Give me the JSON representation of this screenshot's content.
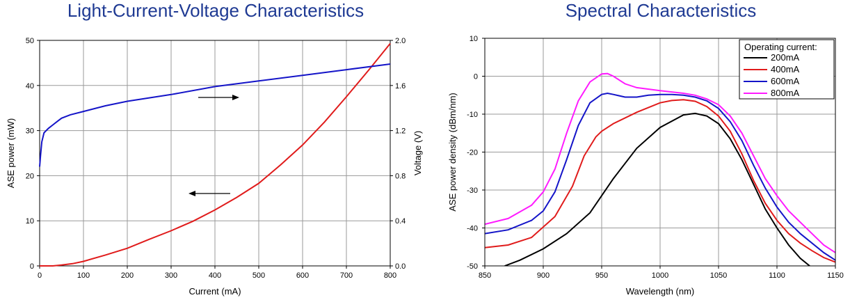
{
  "colors": {
    "title": "#1f3a93",
    "grid": "#9a9a9a",
    "blue": "#1414c8",
    "red": "#e01b1b",
    "black": "#000000",
    "magenta": "#ff1aff"
  },
  "chart_data": [
    {
      "type": "line",
      "title": "Light-Current-Voltage Characteristics",
      "xlabel": "Current (mA)",
      "ylabel": "ASE power (mW)",
      "y2label": "Voltage (V)",
      "xlim": [
        0,
        800
      ],
      "ylim": [
        0,
        50
      ],
      "y2lim": [
        0,
        2.0
      ],
      "xticks": [
        "0",
        "100",
        "200",
        "300",
        "400",
        "500",
        "600",
        "700",
        "800"
      ],
      "yticks": [
        "0",
        "10",
        "20",
        "30",
        "40",
        "50"
      ],
      "y2ticks": [
        "0.0",
        "0.4",
        "0.8",
        "1.2",
        "1.6",
        "2.0"
      ],
      "grid": true,
      "annotations": [
        {
          "type": "arrow",
          "direction": "right",
          "points_to": "Voltage (V)"
        },
        {
          "type": "arrow",
          "direction": "left",
          "points_to": "ASE power (mW)"
        }
      ],
      "series": [
        {
          "axis": "y",
          "color": "red",
          "x": [
            0,
            30,
            50,
            75,
            100,
            150,
            200,
            250,
            300,
            350,
            400,
            450,
            500,
            550,
            600,
            650,
            700,
            750,
            800
          ],
          "y": [
            0,
            0,
            0.2,
            0.5,
            1.0,
            2.4,
            3.9,
            5.9,
            7.8,
            9.9,
            12.4,
            15.2,
            18.3,
            22.4,
            26.8,
            31.9,
            37.5,
            43.3,
            49.3
          ]
        },
        {
          "axis": "y2",
          "color": "blue",
          "x": [
            0,
            2,
            5,
            10,
            20,
            30,
            40,
            50,
            70,
            100,
            150,
            200,
            300,
            400,
            500,
            600,
            700,
            800
          ],
          "y": [
            0.88,
            0.98,
            1.1,
            1.18,
            1.22,
            1.25,
            1.28,
            1.31,
            1.34,
            1.37,
            1.42,
            1.46,
            1.52,
            1.59,
            1.64,
            1.69,
            1.74,
            1.79
          ]
        }
      ]
    },
    {
      "type": "line",
      "title": "Spectral Characteristics",
      "xlabel": "Wavelength (nm)",
      "ylabel": "ASE power density (dBm/nm)",
      "xlim": [
        850,
        1150
      ],
      "ylim": [
        -50,
        10
      ],
      "xticks": [
        "850",
        "900",
        "950",
        "1000",
        "1050",
        "1100",
        "1150"
      ],
      "yticks": [
        "-50",
        "-40",
        "-30",
        "-20",
        "-10",
        "0",
        "10"
      ],
      "grid": true,
      "legend": {
        "title": "Operating current:",
        "position": "top-right"
      },
      "series": [
        {
          "name": "200mA",
          "color": "black",
          "x": [
            867,
            880,
            900,
            920,
            940,
            960,
            980,
            1000,
            1020,
            1030,
            1040,
            1050,
            1060,
            1070,
            1080,
            1090,
            1100,
            1110,
            1120,
            1128
          ],
          "y": [
            -50,
            -48.5,
            -45.5,
            -41.5,
            -36,
            -27,
            -19,
            -13.5,
            -10.2,
            -9.8,
            -10.5,
            -12.5,
            -16.5,
            -22,
            -28.5,
            -35,
            -40,
            -44.5,
            -48,
            -50
          ]
        },
        {
          "name": "400mA",
          "color": "red",
          "x": [
            850,
            870,
            890,
            910,
            925,
            935,
            945,
            950,
            960,
            980,
            1000,
            1010,
            1020,
            1030,
            1040,
            1050,
            1060,
            1070,
            1080,
            1090,
            1100,
            1110,
            1120,
            1130,
            1140,
            1150
          ],
          "y": [
            -45.2,
            -44.5,
            -42.5,
            -37,
            -29,
            -21,
            -16,
            -14.5,
            -12.5,
            -9.5,
            -7,
            -6.4,
            -6.2,
            -6.6,
            -8,
            -10.5,
            -14.5,
            -20.5,
            -27.5,
            -33.5,
            -38,
            -41.5,
            -44,
            -46,
            -47.8,
            -49
          ]
        },
        {
          "name": "600mA",
          "color": "blue",
          "x": [
            850,
            870,
            890,
            900,
            910,
            920,
            930,
            940,
            950,
            955,
            960,
            970,
            980,
            990,
            1000,
            1010,
            1020,
            1030,
            1040,
            1050,
            1060,
            1070,
            1080,
            1090,
            1100,
            1110,
            1120,
            1130,
            1140,
            1150
          ],
          "y": [
            -41.5,
            -40.5,
            -38,
            -35.5,
            -30.5,
            -22,
            -13,
            -7,
            -4.8,
            -4.5,
            -4.8,
            -5.5,
            -5.5,
            -5,
            -4.8,
            -4.8,
            -5,
            -5.5,
            -6.5,
            -8.5,
            -12,
            -17,
            -23.5,
            -29.5,
            -34.5,
            -38.5,
            -41.5,
            -44,
            -46.5,
            -48.5
          ]
        },
        {
          "name": "800mA",
          "color": "magenta",
          "x": [
            850,
            870,
            890,
            900,
            910,
            920,
            930,
            940,
            950,
            955,
            960,
            970,
            980,
            1000,
            1020,
            1030,
            1040,
            1050,
            1060,
            1070,
            1080,
            1090,
            1100,
            1110,
            1120,
            1130,
            1140,
            1150
          ],
          "y": [
            -39,
            -37.5,
            -34,
            -30.5,
            -24.5,
            -15,
            -6.5,
            -1.5,
            0.6,
            0.7,
            0,
            -2,
            -3,
            -3.8,
            -4.5,
            -5,
            -6,
            -7.5,
            -10.5,
            -15,
            -21,
            -27,
            -31.5,
            -35.5,
            -38.5,
            -41.5,
            -44.5,
            -46.5
          ]
        }
      ]
    }
  ]
}
